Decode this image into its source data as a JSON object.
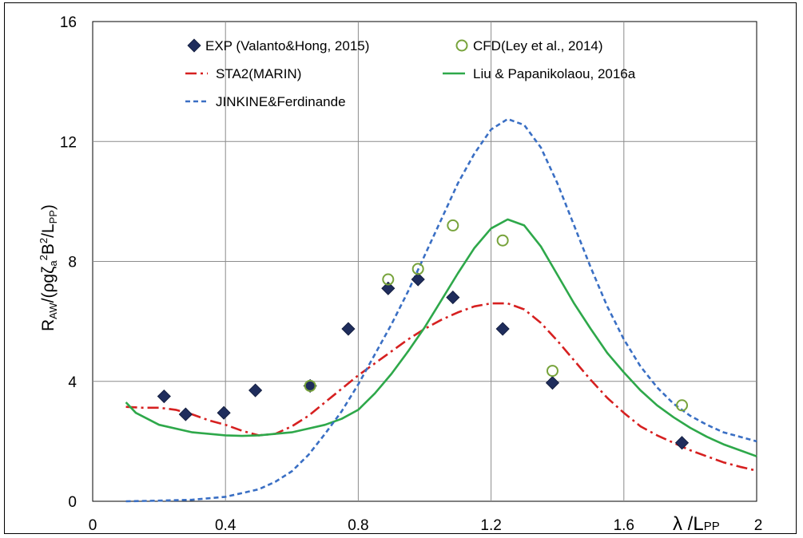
{
  "chart_data": {
    "type": "scatter",
    "xlim": [
      0,
      2
    ],
    "ylim": [
      0,
      16
    ],
    "grid": true,
    "legend_placement": "top",
    "x_ticks": [
      "0",
      "0.4",
      "0.8",
      "1.2",
      "1.6",
      "2"
    ],
    "y_ticks": [
      "0",
      "4",
      "8",
      "12",
      "16"
    ],
    "xlabel": {
      "main": "λ /L",
      "sub": "PP"
    },
    "ylabel": {
      "a": "R",
      "b": "AW",
      "c": "/(ρgζ",
      "d": "a",
      "e": "2",
      "f": "B",
      "g": "2",
      "h": "/L",
      "i": "PP",
      "j": ")"
    },
    "series": [
      {
        "name": "EXP (Valanto&Hong, 2015)",
        "style": "markers-diamond",
        "color": "#1f2d5c",
        "points": [
          [
            0.215,
            3.5
          ],
          [
            0.28,
            2.9
          ],
          [
            0.395,
            2.95
          ],
          [
            0.49,
            3.7
          ],
          [
            0.655,
            3.85
          ],
          [
            0.77,
            5.75
          ],
          [
            0.89,
            7.1
          ],
          [
            0.98,
            7.4
          ],
          [
            1.085,
            6.8
          ],
          [
            1.235,
            5.75
          ],
          [
            1.385,
            3.95
          ],
          [
            1.775,
            1.95
          ]
        ]
      },
      {
        "name": "CFD(Ley et al., 2014)",
        "style": "markers-circle-open",
        "color": "#77a33b",
        "points": [
          [
            0.655,
            3.85
          ],
          [
            0.89,
            7.4
          ],
          [
            0.98,
            7.75
          ],
          [
            1.085,
            9.2
          ],
          [
            1.235,
            8.7
          ],
          [
            1.385,
            4.35
          ],
          [
            1.775,
            3.2
          ]
        ]
      },
      {
        "name": "STA2(MARIN)",
        "style": "dash-dot",
        "color": "#d62020",
        "points": [
          [
            0.1,
            3.15
          ],
          [
            0.15,
            3.12
          ],
          [
            0.2,
            3.12
          ],
          [
            0.25,
            3.05
          ],
          [
            0.3,
            2.9
          ],
          [
            0.35,
            2.7
          ],
          [
            0.4,
            2.55
          ],
          [
            0.45,
            2.35
          ],
          [
            0.5,
            2.2
          ],
          [
            0.55,
            2.25
          ],
          [
            0.6,
            2.5
          ],
          [
            0.65,
            2.85
          ],
          [
            0.7,
            3.3
          ],
          [
            0.75,
            3.75
          ],
          [
            0.8,
            4.2
          ],
          [
            0.85,
            4.6
          ],
          [
            0.9,
            5.0
          ],
          [
            0.95,
            5.4
          ],
          [
            1.0,
            5.75
          ],
          [
            1.05,
            6.05
          ],
          [
            1.1,
            6.3
          ],
          [
            1.15,
            6.5
          ],
          [
            1.2,
            6.6
          ],
          [
            1.25,
            6.6
          ],
          [
            1.3,
            6.4
          ],
          [
            1.35,
            5.95
          ],
          [
            1.4,
            5.35
          ],
          [
            1.45,
            4.7
          ],
          [
            1.5,
            4.05
          ],
          [
            1.55,
            3.45
          ],
          [
            1.6,
            2.95
          ],
          [
            1.65,
            2.5
          ],
          [
            1.7,
            2.2
          ],
          [
            1.75,
            1.95
          ],
          [
            1.8,
            1.7
          ],
          [
            1.85,
            1.5
          ],
          [
            1.9,
            1.3
          ],
          [
            1.95,
            1.15
          ],
          [
            2.0,
            1.02
          ]
        ]
      },
      {
        "name": "Liu & Papanikolaou, 2016a",
        "style": "solid",
        "color": "#2ea84a",
        "points": [
          [
            0.1,
            3.3
          ],
          [
            0.13,
            2.95
          ],
          [
            0.2,
            2.55
          ],
          [
            0.3,
            2.3
          ],
          [
            0.4,
            2.2
          ],
          [
            0.45,
            2.18
          ],
          [
            0.5,
            2.2
          ],
          [
            0.6,
            2.3
          ],
          [
            0.7,
            2.55
          ],
          [
            0.75,
            2.75
          ],
          [
            0.8,
            3.05
          ],
          [
            0.85,
            3.6
          ],
          [
            0.9,
            4.25
          ],
          [
            0.95,
            5.0
          ],
          [
            1.0,
            5.8
          ],
          [
            1.05,
            6.7
          ],
          [
            1.1,
            7.6
          ],
          [
            1.15,
            8.45
          ],
          [
            1.2,
            9.1
          ],
          [
            1.25,
            9.4
          ],
          [
            1.3,
            9.2
          ],
          [
            1.35,
            8.5
          ],
          [
            1.4,
            7.55
          ],
          [
            1.45,
            6.6
          ],
          [
            1.5,
            5.75
          ],
          [
            1.55,
            4.95
          ],
          [
            1.6,
            4.3
          ],
          [
            1.65,
            3.7
          ],
          [
            1.7,
            3.2
          ],
          [
            1.75,
            2.8
          ],
          [
            1.8,
            2.45
          ],
          [
            1.85,
            2.15
          ],
          [
            1.9,
            1.9
          ],
          [
            1.95,
            1.7
          ],
          [
            2.0,
            1.5
          ]
        ]
      },
      {
        "name": "JINKINE&Ferdinande",
        "style": "dashed",
        "color": "#3a6fc4",
        "points": [
          [
            0.1,
            0.0
          ],
          [
            0.2,
            0.02
          ],
          [
            0.3,
            0.05
          ],
          [
            0.4,
            0.15
          ],
          [
            0.5,
            0.4
          ],
          [
            0.55,
            0.65
          ],
          [
            0.6,
            1.0
          ],
          [
            0.65,
            1.55
          ],
          [
            0.7,
            2.25
          ],
          [
            0.75,
            3.0
          ],
          [
            0.8,
            3.9
          ],
          [
            0.85,
            4.9
          ],
          [
            0.9,
            5.9
          ],
          [
            0.95,
            7.0
          ],
          [
            1.0,
            8.2
          ],
          [
            1.05,
            9.4
          ],
          [
            1.1,
            10.6
          ],
          [
            1.15,
            11.6
          ],
          [
            1.2,
            12.4
          ],
          [
            1.25,
            12.75
          ],
          [
            1.3,
            12.55
          ],
          [
            1.35,
            11.8
          ],
          [
            1.4,
            10.6
          ],
          [
            1.45,
            9.2
          ],
          [
            1.5,
            7.8
          ],
          [
            1.55,
            6.5
          ],
          [
            1.6,
            5.4
          ],
          [
            1.65,
            4.5
          ],
          [
            1.7,
            3.8
          ],
          [
            1.75,
            3.25
          ],
          [
            1.8,
            2.85
          ],
          [
            1.85,
            2.55
          ],
          [
            1.9,
            2.3
          ],
          [
            1.95,
            2.15
          ],
          [
            2.0,
            2.0
          ]
        ]
      }
    ]
  }
}
